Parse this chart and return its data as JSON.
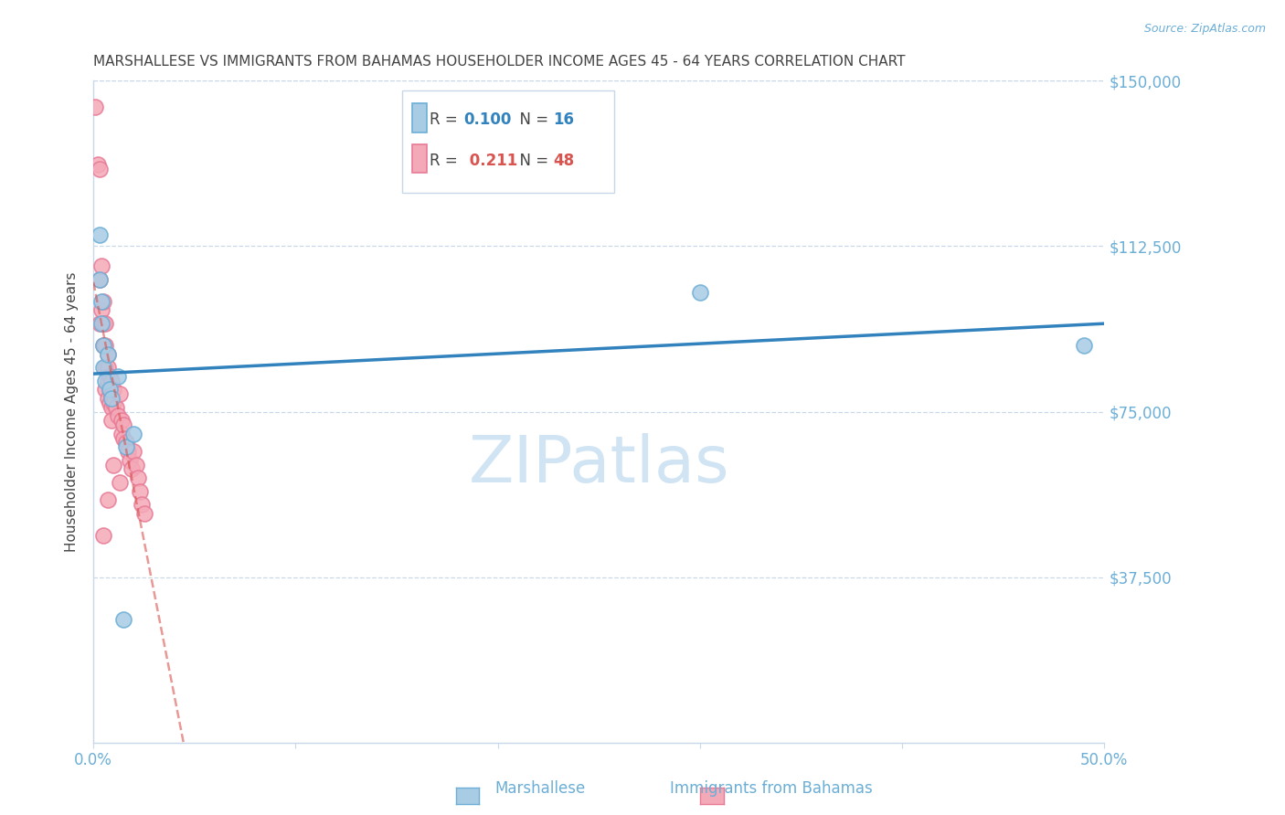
{
  "title": "MARSHALLESE VS IMMIGRANTS FROM BAHAMAS HOUSEHOLDER INCOME AGES 45 - 64 YEARS CORRELATION CHART",
  "source": "Source: ZipAtlas.com",
  "ylabel": "Householder Income Ages 45 - 64 years",
  "xlim": [
    0.0,
    0.5
  ],
  "ylim": [
    0,
    150000
  ],
  "yticks": [
    0,
    37500,
    75000,
    112500,
    150000
  ],
  "ytick_labels": [
    "",
    "$37,500",
    "$75,000",
    "$112,500",
    "$150,000"
  ],
  "xticks": [
    0.0,
    0.1,
    0.2,
    0.3,
    0.4,
    0.5
  ],
  "xtick_labels": [
    "0.0%",
    "",
    "",
    "",
    "",
    "50.0%"
  ],
  "legend_blue_r": "0.100",
  "legend_blue_n": "16",
  "legend_pink_r": "0.211",
  "legend_pink_n": "48",
  "label_marshallese": "Marshallese",
  "label_bahamas": "Immigrants from Bahamas",
  "blue_color": "#a8cce4",
  "pink_color": "#f4a9b8",
  "blue_edge_color": "#6baed6",
  "pink_edge_color": "#e87a96",
  "blue_line_color": "#3182bd",
  "pink_line_color": "#d9534f",
  "axis_label_color": "#6baed6",
  "grid_color": "#c8d8e8",
  "title_color": "#444444",
  "background_color": "#ffffff",
  "watermark": "ZIPatlas",
  "watermark_color": "#d0e4f4",
  "marshallese_x": [
    0.003,
    0.003,
    0.004,
    0.004,
    0.005,
    0.005,
    0.006,
    0.007,
    0.008,
    0.009,
    0.012,
    0.016,
    0.02,
    0.3,
    0.49,
    0.015
  ],
  "marshallese_y": [
    115000,
    105000,
    100000,
    95000,
    90000,
    85000,
    82000,
    88000,
    80000,
    78000,
    83000,
    67000,
    70000,
    102000,
    90000,
    28000
  ],
  "bahamas_x": [
    0.001,
    0.002,
    0.003,
    0.003,
    0.003,
    0.004,
    0.004,
    0.005,
    0.005,
    0.005,
    0.006,
    0.006,
    0.006,
    0.006,
    0.007,
    0.007,
    0.007,
    0.007,
    0.008,
    0.008,
    0.008,
    0.009,
    0.009,
    0.009,
    0.009,
    0.01,
    0.01,
    0.011,
    0.012,
    0.013,
    0.014,
    0.014,
    0.015,
    0.015,
    0.016,
    0.017,
    0.018,
    0.019,
    0.02,
    0.021,
    0.022,
    0.023,
    0.024,
    0.025,
    0.005,
    0.007,
    0.01,
    0.013
  ],
  "bahamas_y": [
    144000,
    131000,
    130000,
    105000,
    95000,
    108000,
    98000,
    100000,
    95000,
    90000,
    95000,
    90000,
    85000,
    80000,
    88000,
    85000,
    82000,
    78000,
    83000,
    80000,
    77000,
    82000,
    79000,
    76000,
    73000,
    80000,
    77000,
    76000,
    74000,
    79000,
    73000,
    70000,
    72000,
    69000,
    68000,
    66000,
    64000,
    62000,
    66000,
    63000,
    60000,
    57000,
    54000,
    52000,
    47000,
    55000,
    63000,
    59000
  ]
}
